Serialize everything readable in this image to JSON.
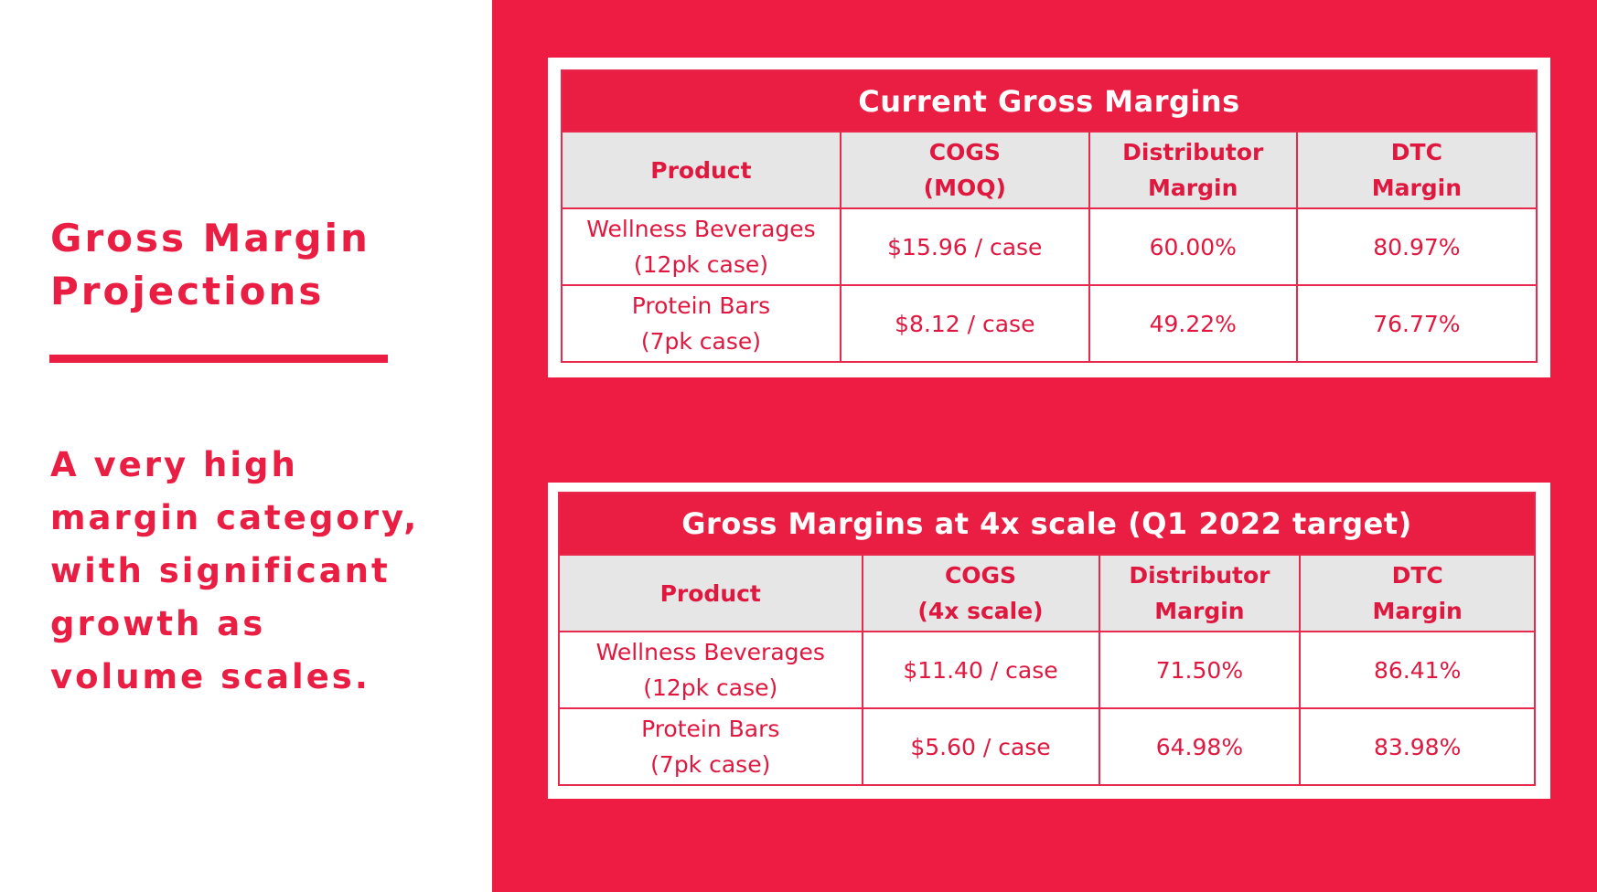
{
  "slide": {
    "title_line1": "Gross Margin",
    "title_line2": "Projections",
    "body_lines": [
      "A very high",
      "margin category,",
      "with significant",
      "growth as",
      "volume scales."
    ]
  },
  "colors": {
    "accent": "#ee1c43",
    "header_bg": "#e6e6e6",
    "text_on_accent": "#ffffff"
  },
  "tables": [
    {
      "title": "Current Gross Margins",
      "headers": [
        [
          "Product"
        ],
        [
          "COGS",
          "(MOQ)"
        ],
        [
          "Distributor",
          "Margin"
        ],
        [
          "DTC",
          "Margin"
        ]
      ],
      "rows": [
        {
          "product": [
            "Wellness Beverages",
            "(12pk case)"
          ],
          "cogs": "$15.96 / case",
          "distributor_margin": "60.00%",
          "dtc_margin": "80.97%"
        },
        {
          "product": [
            "Protein Bars",
            "(7pk case)"
          ],
          "cogs": "$8.12 / case",
          "distributor_margin": "49.22%",
          "dtc_margin": "76.77%"
        }
      ]
    },
    {
      "title": "Gross Margins at 4x scale (Q1 2022 target)",
      "headers": [
        [
          "Product"
        ],
        [
          "COGS",
          "(4x scale)"
        ],
        [
          "Distributor",
          "Margin"
        ],
        [
          "DTC",
          "Margin"
        ]
      ],
      "rows": [
        {
          "product": [
            "Wellness Beverages",
            "(12pk case)"
          ],
          "cogs": "$11.40 / case",
          "distributor_margin": "71.50%",
          "dtc_margin": "86.41%"
        },
        {
          "product": [
            "Protein Bars",
            "(7pk case)"
          ],
          "cogs": "$5.60 / case",
          "distributor_margin": "64.98%",
          "dtc_margin": "83.98%"
        }
      ]
    }
  ]
}
